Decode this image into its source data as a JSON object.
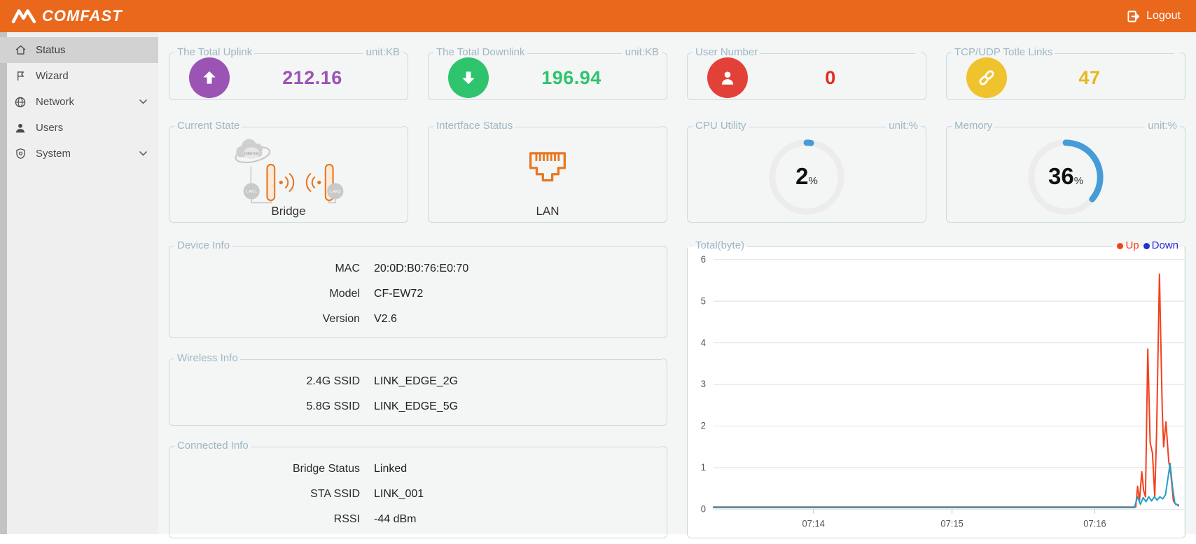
{
  "header": {
    "brand": "COMFAST",
    "logout_label": "Logout"
  },
  "sidebar": {
    "items": [
      {
        "label": "Status",
        "icon": "home-icon",
        "selected": true,
        "has_chevron": false
      },
      {
        "label": "Wizard",
        "icon": "flag-icon",
        "selected": false,
        "has_chevron": false
      },
      {
        "label": "Network",
        "icon": "globe-icon",
        "selected": false,
        "has_chevron": true
      },
      {
        "label": "Users",
        "icon": "user-icon",
        "selected": false,
        "has_chevron": false
      },
      {
        "label": "System",
        "icon": "shield-icon",
        "selected": false,
        "has_chevron": true
      }
    ]
  },
  "stat_cards": [
    {
      "title": "The Total Uplink",
      "unit": "unit:KB",
      "value": "212.16",
      "icon": "arrow-up-icon",
      "color": "#9b54b4",
      "value_color": "#9b54b4"
    },
    {
      "title": "The Total Downlink",
      "unit": "unit:KB",
      "value": "196.94",
      "icon": "arrow-down-icon",
      "color": "#2ec46e",
      "value_color": "#2ec46e"
    },
    {
      "title": "User Number",
      "unit": "",
      "value": "0",
      "icon": "person-icon",
      "color": "#e24138",
      "value_color": "#e02c20"
    },
    {
      "title": "TCP/UDP Totle Links",
      "unit": "",
      "value": "47",
      "icon": "chain-link-icon",
      "color": "#eec32d",
      "value_color": "#e5b821"
    }
  ],
  "state_card": {
    "title": "Current State",
    "cloud_label": "Internet",
    "lan1_label": "LAN1",
    "lan2_label": "LAN2",
    "mode_label": "Bridge"
  },
  "interface_card": {
    "title": "Intertface Status",
    "port_label": "LAN"
  },
  "gauges": [
    {
      "title": "CPU Utility",
      "unit": "unit:%",
      "percent": 2,
      "suffix": "%",
      "arc_color": "#459cd8"
    },
    {
      "title": "Memory",
      "unit": "unit:%",
      "percent": 36,
      "suffix": "%",
      "arc_color": "#459cd8"
    }
  ],
  "info_sections": [
    {
      "title": "Device Info",
      "rows": [
        [
          "MAC",
          "20:0D:B0:76:E0:70"
        ],
        [
          "Model",
          "CF-EW72"
        ],
        [
          "Version",
          "V2.6"
        ]
      ]
    },
    {
      "title": "Wireless Info",
      "rows": [
        [
          "2.4G SSID",
          "LINK_EDGE_2G"
        ],
        [
          "5.8G SSID",
          "LINK_EDGE_5G"
        ]
      ]
    },
    {
      "title": "Connected Info",
      "rows": [
        [
          "Bridge Status",
          "Linked"
        ],
        [
          "STA SSID",
          "LINK_001"
        ],
        [
          "RSSI",
          "-44 dBm"
        ]
      ]
    }
  ],
  "chart_data": {
    "type": "line",
    "title": "Total(byte)",
    "ylim": [
      0,
      6
    ],
    "yticks": [
      0,
      1,
      2,
      3,
      4,
      5,
      6
    ],
    "grid": true,
    "legend_position": "top-right",
    "legend": [
      {
        "name": "Up",
        "color": "#f4401d"
      },
      {
        "name": "Down",
        "color": "#2b2bd8"
      }
    ],
    "xticks": [
      {
        "label": "07:14",
        "pos": 21.5
      },
      {
        "label": "07:15",
        "pos": 51.3
      },
      {
        "label": "07:16",
        "pos": 82.0
      }
    ],
    "series": [
      {
        "name": "Up",
        "line_color": "#f4401d",
        "points": [
          [
            0,
            0.05
          ],
          [
            60,
            0.05
          ],
          [
            88,
            0.05
          ],
          [
            90.8,
            0.05
          ],
          [
            91.2,
            0.55
          ],
          [
            91.6,
            0.2
          ],
          [
            92.1,
            0.9
          ],
          [
            92.5,
            0.45
          ],
          [
            92.9,
            0.3
          ],
          [
            93.4,
            3.85
          ],
          [
            93.9,
            1.6
          ],
          [
            94.4,
            1.35
          ],
          [
            94.9,
            0.3
          ],
          [
            95.3,
            1.9
          ],
          [
            95.9,
            5.65
          ],
          [
            96.5,
            2.4
          ],
          [
            96.8,
            1.5
          ],
          [
            97.3,
            2.1
          ],
          [
            97.9,
            1.15
          ],
          [
            98.4,
            0.8
          ],
          [
            98.9,
            0.2
          ],
          [
            99.4,
            0.12
          ],
          [
            100,
            0.1
          ]
        ]
      },
      {
        "name": "Down",
        "line_color": "#22a0c8",
        "points": [
          [
            0,
            0.04
          ],
          [
            60,
            0.04
          ],
          [
            90.5,
            0.04
          ],
          [
            91.2,
            0.3
          ],
          [
            91.8,
            0.12
          ],
          [
            92.4,
            0.28
          ],
          [
            93,
            0.18
          ],
          [
            93.6,
            0.3
          ],
          [
            94.2,
            0.2
          ],
          [
            94.8,
            0.3
          ],
          [
            95.4,
            0.22
          ],
          [
            96,
            0.3
          ],
          [
            96.6,
            0.25
          ],
          [
            97.2,
            0.35
          ],
          [
            97.8,
            0.8
          ],
          [
            98.2,
            1.1
          ],
          [
            98.7,
            0.55
          ],
          [
            99.2,
            0.15
          ],
          [
            100,
            0.08
          ]
        ]
      }
    ]
  }
}
